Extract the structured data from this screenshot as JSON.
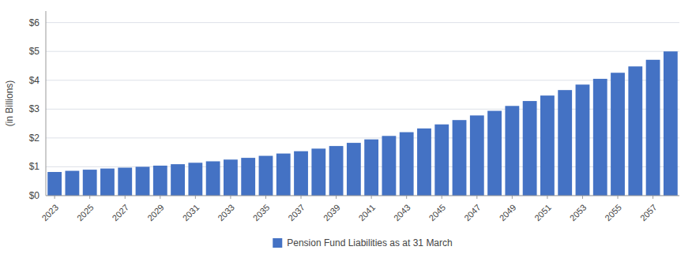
{
  "chart_data": {
    "type": "bar",
    "y_label": "(in Billions)",
    "categories": [
      "2023",
      null,
      "2025",
      null,
      "2027",
      null,
      "2029",
      null,
      "2031",
      null,
      "2033",
      null,
      "2035",
      null,
      "2037",
      null,
      "2039",
      null,
      "2041",
      null,
      "2043",
      null,
      "2045",
      null,
      "2047",
      null,
      "2049",
      null,
      "2051",
      null,
      "2053",
      null,
      "2055",
      null,
      "2057",
      null
    ],
    "series": [
      {
        "name": "Pension Fund Liabilities as at 31 March",
        "color": "#4472C4",
        "values": [
          0.82,
          0.86,
          0.9,
          0.94,
          0.97,
          1.0,
          1.04,
          1.09,
          1.14,
          1.19,
          1.25,
          1.31,
          1.38,
          1.46,
          1.54,
          1.63,
          1.72,
          1.83,
          1.95,
          2.07,
          2.2,
          2.33,
          2.47,
          2.62,
          2.78,
          2.94,
          3.11,
          3.28,
          3.47,
          3.66,
          3.85,
          4.05,
          4.26,
          4.48,
          4.71,
          5.0
        ]
      }
    ],
    "ylim": [
      0,
      6.4
    ],
    "yticks": [
      {
        "value": 0,
        "label": "$0"
      },
      {
        "value": 1,
        "label": "$1"
      },
      {
        "value": 2,
        "label": "$2"
      },
      {
        "value": 3,
        "label": "$3"
      },
      {
        "value": 4,
        "label": "$4"
      },
      {
        "value": 5,
        "label": "$5"
      },
      {
        "value": 6,
        "label": "$6"
      }
    ],
    "grid": true,
    "legend": "bottom"
  }
}
